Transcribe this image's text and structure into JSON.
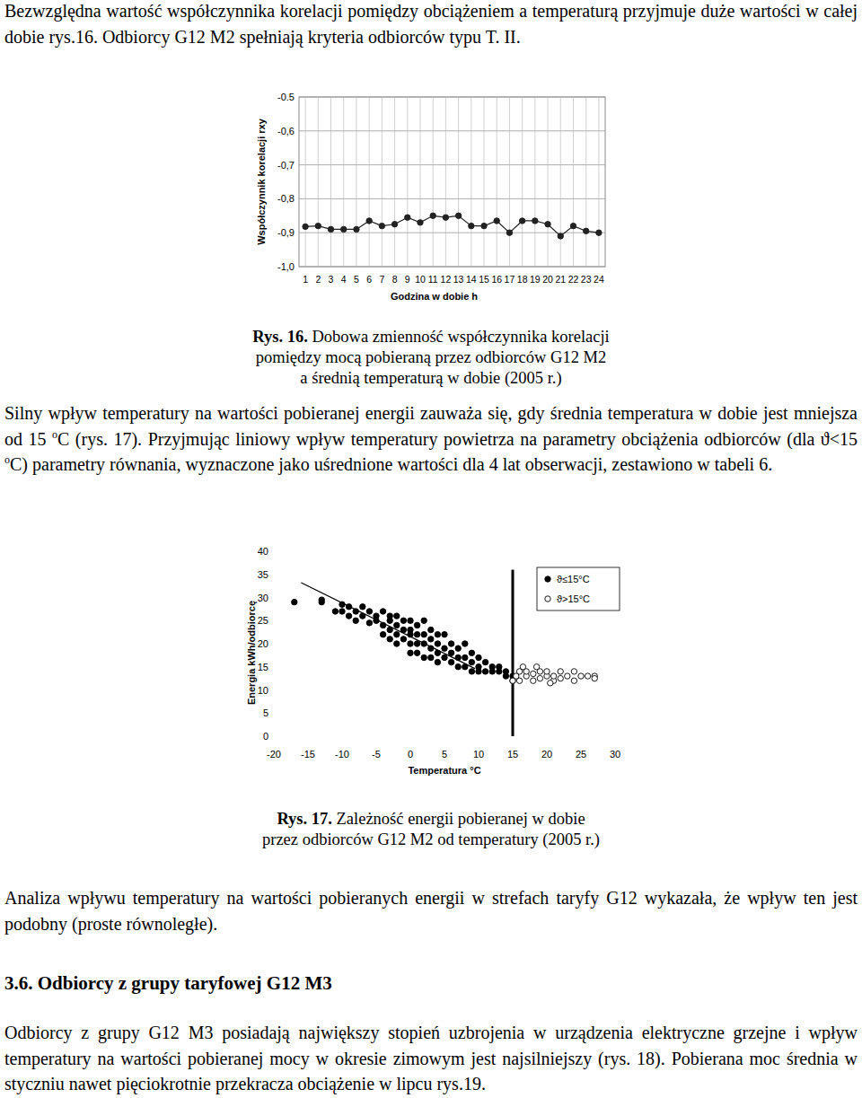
{
  "text": {
    "p1": [
      {
        "t": "Bezwzględna wartość współczynnika korelacji pomiędzy obciążeniem a temperaturą przyjmuje duże wartości w całej dobie rys.16. Odbiorcy G12 M2 spełniają kryteria odbiorców typu T. II."
      }
    ],
    "p2": [
      {
        "t": "Silny wpływ temperatury na wartości pobieranej energii zauważa się, gdy średnia temperatura w dobie jest mniejsza od 15 "
      },
      {
        "sup": "o"
      },
      {
        "t": "C (rys. 17). Przyjmując liniowy wpływ temperatury powietrza na parametry obciążenia odbiorców (dla ϑ<15 "
      },
      {
        "sup": "o"
      },
      {
        "t": "C) parametry równania, wyznaczone jako uśrednione wartości dla 4 lat obserwacji, zestawiono w tabeli 6."
      }
    ],
    "p3": [
      {
        "t": "Analiza wpływu temperatury na wartości pobieranych energii w strefach taryfy G12 wykazała, że wpływ ten jest podobny (proste równoległe)."
      }
    ],
    "heading": "3.6. Odbiorcy z grupy taryfowej G12 M3",
    "p4": [
      {
        "t": "Odbiorcy z grupy G12 M3 posiadają największy stopień uzbrojenia w urządzenia elektryczne grzejne i wpływ temperatury na wartości pobieranej mocy w okresie zimowym jest najsilniejszy (rys. 18). Pobierana moc średnia w styczniu nawet pięciokrotnie przekracza obciążenie w lipcu rys.19."
      }
    ]
  },
  "chart_data": [
    {
      "type": "line",
      "figure_label": "Rys. 16.",
      "title": [
        "Dobowa zmienność współczynnika korelacji",
        "pomiędzy mocą pobieraną przez odbiorców G12 M2",
        "a średnią temperaturą w dobie (2005 r.)"
      ],
      "x_label": "Godzina w dobie h",
      "y_label": "Współczynnik korelacji rxy",
      "categories": [
        1,
        2,
        3,
        4,
        5,
        6,
        7,
        8,
        9,
        10,
        11,
        12,
        13,
        14,
        15,
        16,
        17,
        18,
        19,
        20,
        21,
        22,
        23,
        24
      ],
      "series": [
        {
          "name": "rxy",
          "color": "#222222",
          "marker": "circle",
          "values": [
            -0.882,
            -0.88,
            -0.89,
            -0.89,
            -0.89,
            -0.865,
            -0.88,
            -0.875,
            -0.855,
            -0.87,
            -0.85,
            -0.855,
            -0.85,
            -0.88,
            -0.88,
            -0.865,
            -0.9,
            -0.865,
            -0.865,
            -0.875,
            -0.91,
            -0.88,
            -0.895,
            -0.9
          ]
        }
      ],
      "ylim": [
        -1.0,
        -0.5
      ],
      "yticks": [
        {
          "value": -1.0,
          "label": "-1,0"
        },
        {
          "value": -0.9,
          "label": "-0,9"
        },
        {
          "value": -0.8,
          "label": "-0,8"
        },
        {
          "value": -0.7,
          "label": "-0,7"
        },
        {
          "value": -0.6,
          "label": "-0,6"
        },
        {
          "value": -0.5,
          "label": "-0.5"
        }
      ],
      "grid": true
    },
    {
      "type": "scatter",
      "figure_label": "Rys. 17.",
      "title": [
        "Zależność energii pobieranej w dobie",
        "przez odbiorców G12 M2 od temperatury (2005 r.)"
      ],
      "x_label": "Temperatura °C",
      "y_label": "Energia   kWh/odbiorcę",
      "legend": "top-right",
      "grid": false,
      "xlim": [
        -20,
        30
      ],
      "xticks": [
        -20,
        -15,
        -10,
        -5,
        0,
        5,
        10,
        15,
        20,
        25,
        30
      ],
      "ylim": [
        0,
        40
      ],
      "yticks": [
        0,
        5,
        10,
        15,
        20,
        25,
        30,
        35,
        40
      ],
      "trend": {
        "x": [
          -16,
          9.5
        ],
        "y": [
          33.2,
          14.6
        ]
      },
      "threshold": {
        "x": 15,
        "y": [
          0,
          36
        ]
      },
      "series": [
        {
          "name": "ϑ≤15°C",
          "color": "#000000",
          "marker": "circle",
          "x": [
            -17,
            -13,
            -13,
            -11,
            -10,
            -10,
            -9,
            -9,
            -8,
            -8,
            -7,
            -7,
            -6,
            -6,
            -5,
            -5,
            -4,
            -4,
            -4,
            -3,
            -3,
            -3,
            -3,
            -2,
            -2,
            -2,
            -2,
            -1,
            -1,
            -1,
            0,
            0,
            0,
            0,
            0,
            1,
            1,
            1,
            1,
            2,
            2,
            2,
            2,
            3,
            3,
            3,
            3,
            4,
            4,
            4,
            4,
            5,
            5,
            5,
            6,
            6,
            6,
            7,
            7,
            7,
            8,
            8,
            8,
            9,
            9,
            9,
            10,
            10,
            10,
            11,
            11,
            12,
            12,
            13,
            13,
            14,
            14,
            15,
            15
          ],
          "values": [
            29,
            29.5,
            29,
            27,
            28.5,
            27,
            28,
            26,
            27,
            25,
            28,
            26,
            27,
            24.5,
            26,
            25,
            27,
            24,
            22,
            26,
            25,
            23,
            21,
            26,
            24,
            22,
            20,
            25,
            23,
            21,
            25,
            23,
            22,
            20,
            18,
            24,
            22,
            20,
            18,
            25,
            22,
            20,
            17,
            23,
            21,
            19,
            17,
            22,
            20,
            18,
            16,
            22,
            19,
            17,
            20,
            18,
            16,
            19,
            17,
            15,
            20,
            17,
            15,
            18,
            16,
            14,
            17,
            15,
            14,
            16,
            14,
            15,
            14,
            15,
            14,
            14,
            13,
            13,
            12
          ]
        },
        {
          "name": "ϑ>15°C",
          "color": "#000000",
          "marker": "circle-open",
          "x": [
            15,
            15.5,
            16,
            16,
            17,
            17,
            18,
            18,
            19,
            19,
            20,
            20,
            21,
            21,
            22,
            22,
            23,
            24,
            24,
            25,
            26,
            27,
            27,
            16.5,
            18.5,
            20.5
          ],
          "values": [
            12,
            13,
            14,
            12,
            13,
            14,
            12,
            13.5,
            14,
            12.5,
            13,
            14,
            12,
            13,
            14,
            12.5,
            13,
            14,
            12,
            13,
            13,
            13,
            12.5,
            15,
            15,
            11.5
          ]
        }
      ]
    }
  ]
}
